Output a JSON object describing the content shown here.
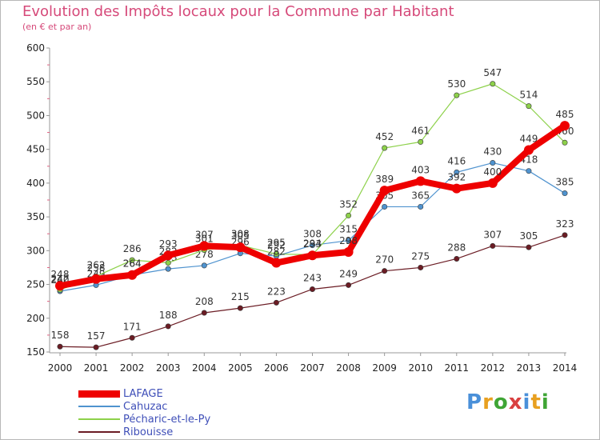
{
  "title": "Evolution des Impôts locaux pour la Commune par Habitant",
  "subtitle": "(en € et par an)",
  "brand": {
    "text": "Proxiti",
    "colors": [
      "#4a90d9",
      "#e8a020",
      "#3fa535",
      "#d94040",
      "#4a90d9",
      "#e8a020",
      "#3fa535"
    ]
  },
  "chart_data": {
    "type": "line",
    "title": "Evolution des Impôts locaux pour la Commune par Habitant",
    "subtitle": "(en € et par an)",
    "xlabel": "",
    "ylabel": "",
    "x": [
      "2000",
      "2001",
      "2002",
      "2003",
      "2004",
      "2005",
      "2006",
      "2007",
      "2008",
      "2009",
      "2010",
      "2011",
      "2012",
      "2013",
      "2014"
    ],
    "ylim": [
      150,
      600
    ],
    "yticks": [
      150,
      200,
      250,
      300,
      350,
      400,
      450,
      500,
      550,
      600
    ],
    "grid": false,
    "legend_position": "bottom-left",
    "series": [
      {
        "name": "Ribouisse",
        "color": "#6b1c24",
        "values": [
          158,
          157,
          171,
          188,
          208,
          215,
          223,
          243,
          249,
          270,
          275,
          288,
          307,
          305,
          323
        ]
      },
      {
        "name": "Cahuzac",
        "color": "#4f93cf",
        "values": [
          240,
          249,
          264,
          273,
          278,
          296,
          292,
          308,
          315,
          365,
          365,
          416,
          430,
          418,
          385
        ]
      },
      {
        "name": "Pécharic-et-le-Py",
        "color": "#8dd14a",
        "values": [
          242,
          262,
          286,
          282,
          301,
          308,
          295,
          294,
          352,
          452,
          461,
          530,
          547,
          514,
          460
        ]
      },
      {
        "name": "LAFAGE",
        "color": "#ee0000",
        "values": [
          248,
          258,
          264,
          293,
          307,
          305,
          282,
          293,
          298,
          389,
          403,
          392,
          400,
          449,
          485
        ]
      }
    ],
    "legend_order": [
      "LAFAGE",
      "Cahuzac",
      "Pécharic-et-le-Py",
      "Ribouisse"
    ]
  }
}
